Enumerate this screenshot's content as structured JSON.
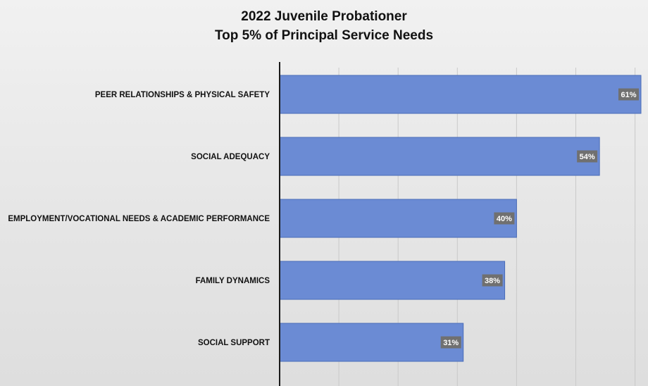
{
  "chart_data": {
    "type": "bar",
    "orientation": "horizontal",
    "title_lines": [
      "2022 Juvenile Probationer",
      "Top 5% of Principal Service Needs"
    ],
    "categories": [
      "PEER RELATIONSHIPS & PHYSICAL SAFETY",
      "SOCIAL ADEQUACY",
      "EMPLOYMENT/VOCATIONAL NEEDS & ACADEMIC PERFORMANCE",
      "FAMILY DYNAMICS",
      "SOCIAL SUPPORT"
    ],
    "values": [
      61,
      54,
      40,
      38,
      31
    ],
    "data_labels": [
      "61%",
      "54%",
      "40%",
      "38%",
      "31%"
    ],
    "xlim": [
      0,
      61
    ],
    "grid": true,
    "legend": "none",
    "colors": {
      "bar": "#6b8bd4",
      "bar_edge": "#4a6cb8",
      "label_box": "#707070",
      "grid": "#c9c9c9",
      "axis": "#1a1a1a"
    }
  }
}
